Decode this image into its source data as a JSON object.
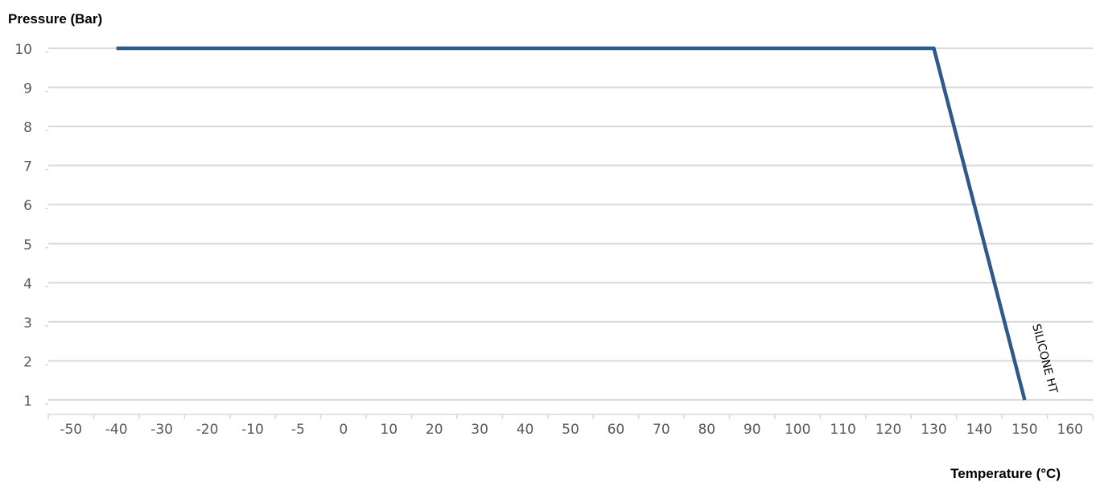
{
  "chart_data": {
    "type": "line",
    "title": "",
    "ylabel": "Pressure (Bar)",
    "xlabel": "Temperature (°C)",
    "categories": [
      "-50",
      "-40",
      "-30",
      "-20",
      "-10",
      "-5",
      "0",
      "10",
      "20",
      "30",
      "40",
      "50",
      "60",
      "70",
      "80",
      "90",
      "100",
      "110",
      "120",
      "130",
      "140",
      "150",
      "160"
    ],
    "y_ticks": [
      "1",
      "2",
      "3",
      "4",
      "5",
      "6",
      "7",
      "8",
      "9",
      "10"
    ],
    "ylim": [
      1,
      10
    ],
    "grid": true,
    "series": [
      {
        "name": "SILICONE HT",
        "color": "#2e5a8a",
        "points": [
          {
            "x": "-40",
            "y": 10
          },
          {
            "x": "130",
            "y": 10
          },
          {
            "x": "150",
            "y": 1
          }
        ]
      }
    ]
  }
}
